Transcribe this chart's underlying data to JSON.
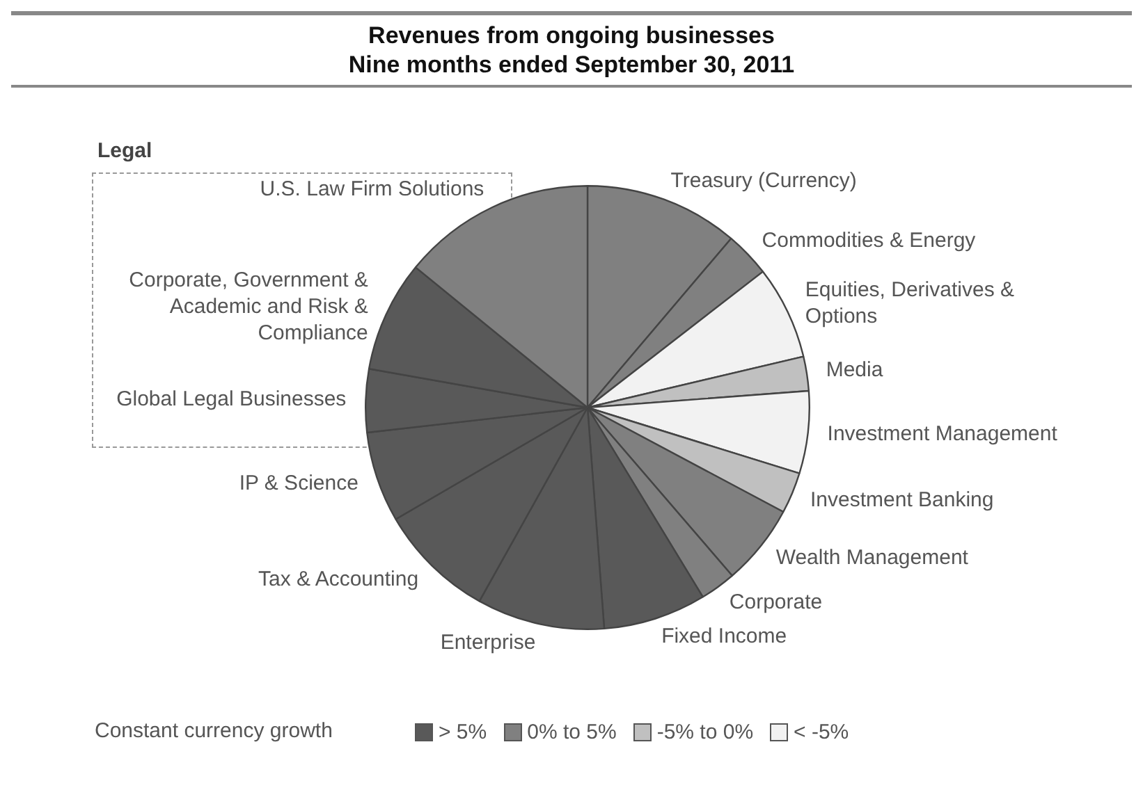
{
  "chart_data": {
    "type": "pie",
    "title": "Revenues from ongoing businesses",
    "subtitle": "Nine months ended September 30, 2011",
    "categories": [
      "Treasury (Currency)",
      "Commodities & Energy",
      "Equities, Derivatives & Options",
      "Media",
      "Investment Management",
      "Investment Banking",
      "Wealth Management",
      "Corporate",
      "Fixed Income",
      "Enterprise",
      "Tax & Accounting",
      "IP & Science",
      "Global Legal Businesses",
      "Corporate, Government & Academic and Risk & Compliance",
      "U.S. Law Firm Solutions"
    ],
    "values": [
      11.2,
      3.3,
      6.8,
      2.5,
      6.0,
      3.0,
      5.9,
      2.6,
      7.5,
      9.3,
      8.5,
      6.6,
      4.6,
      8.1,
      14.1
    ],
    "colors": [
      "#808080",
      "#808080",
      "#f2f2f2",
      "#c0c0c0",
      "#f2f2f2",
      "#c0c0c0",
      "#808080",
      "#808080",
      "#595959",
      "#595959",
      "#595959",
      "#595959",
      "#595959",
      "#595959",
      "#808080"
    ],
    "legend_title": "Constant currency growth",
    "annotations": [
      "Legal",
      "> 5%",
      "0% to 5%",
      "-5% to 0%",
      "< -5%"
    ]
  }
}
